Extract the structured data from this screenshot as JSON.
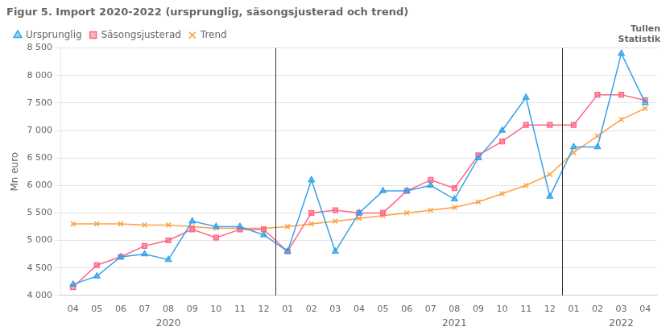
{
  "chart_data": {
    "type": "line",
    "title": "Figur 5. Import 2020-2022 (ursprunglig, säsongsjusterad och trend)",
    "ylabel": "Mn euro",
    "categories": [
      "04",
      "05",
      "06",
      "07",
      "08",
      "09",
      "10",
      "11",
      "12",
      "01",
      "02",
      "03",
      "04",
      "05",
      "06",
      "07",
      "08",
      "09",
      "10",
      "11",
      "12",
      "01",
      "02",
      "03",
      "04"
    ],
    "series": [
      {
        "name": "Ursprunglig",
        "marker": "triangle",
        "values": [
          4200,
          4350,
          4700,
          4750,
          4650,
          5350,
          5250,
          5250,
          5100,
          4800,
          6100,
          4800,
          5500,
          5900,
          5900,
          6000,
          5750,
          6500,
          7000,
          7600,
          5800,
          6700,
          6700,
          8400,
          7500
        ]
      },
      {
        "name": "Säsongsjusterad",
        "marker": "square",
        "values": [
          4150,
          4550,
          4700,
          4900,
          5000,
          5200,
          5050,
          5200,
          5200,
          4800,
          5500,
          5550,
          5500,
          5500,
          5900,
          6100,
          5950,
          6550,
          6800,
          7100,
          7100,
          7100,
          7650,
          7650,
          7550
        ]
      },
      {
        "name": "Trend",
        "marker": "x",
        "values": [
          5300,
          5300,
          5300,
          5280,
          5280,
          5250,
          5220,
          5220,
          5220,
          5250,
          5300,
          5350,
          5400,
          5450,
          5500,
          5550,
          5600,
          5700,
          5850,
          6000,
          6200,
          6600,
          6900,
          7200,
          7400
        ]
      }
    ],
    "ylim": [
      4000,
      8500
    ],
    "yticks": [
      {
        "value": 4000,
        "label": "4 000"
      },
      {
        "value": 4500,
        "label": "4 500"
      },
      {
        "value": 5000,
        "label": "5 000"
      },
      {
        "value": 5500,
        "label": "5 500"
      },
      {
        "value": 6000,
        "label": "6 000"
      },
      {
        "value": 6500,
        "label": "6 500"
      },
      {
        "value": 7000,
        "label": "7 000"
      },
      {
        "value": 7500,
        "label": "7 500"
      },
      {
        "value": 8000,
        "label": "8 000"
      },
      {
        "value": 8500,
        "label": "8 500"
      }
    ],
    "grid": "y",
    "legend": "upper left",
    "annotations": [
      {
        "text": "2020",
        "x": 4
      },
      {
        "text": "2021",
        "x": 16
      },
      {
        "text": "2022",
        "x": 23
      },
      {
        "text": "Tullen\nStatistik"
      }
    ],
    "x_dividers": [
      8.5,
      20.5
    ]
  }
}
